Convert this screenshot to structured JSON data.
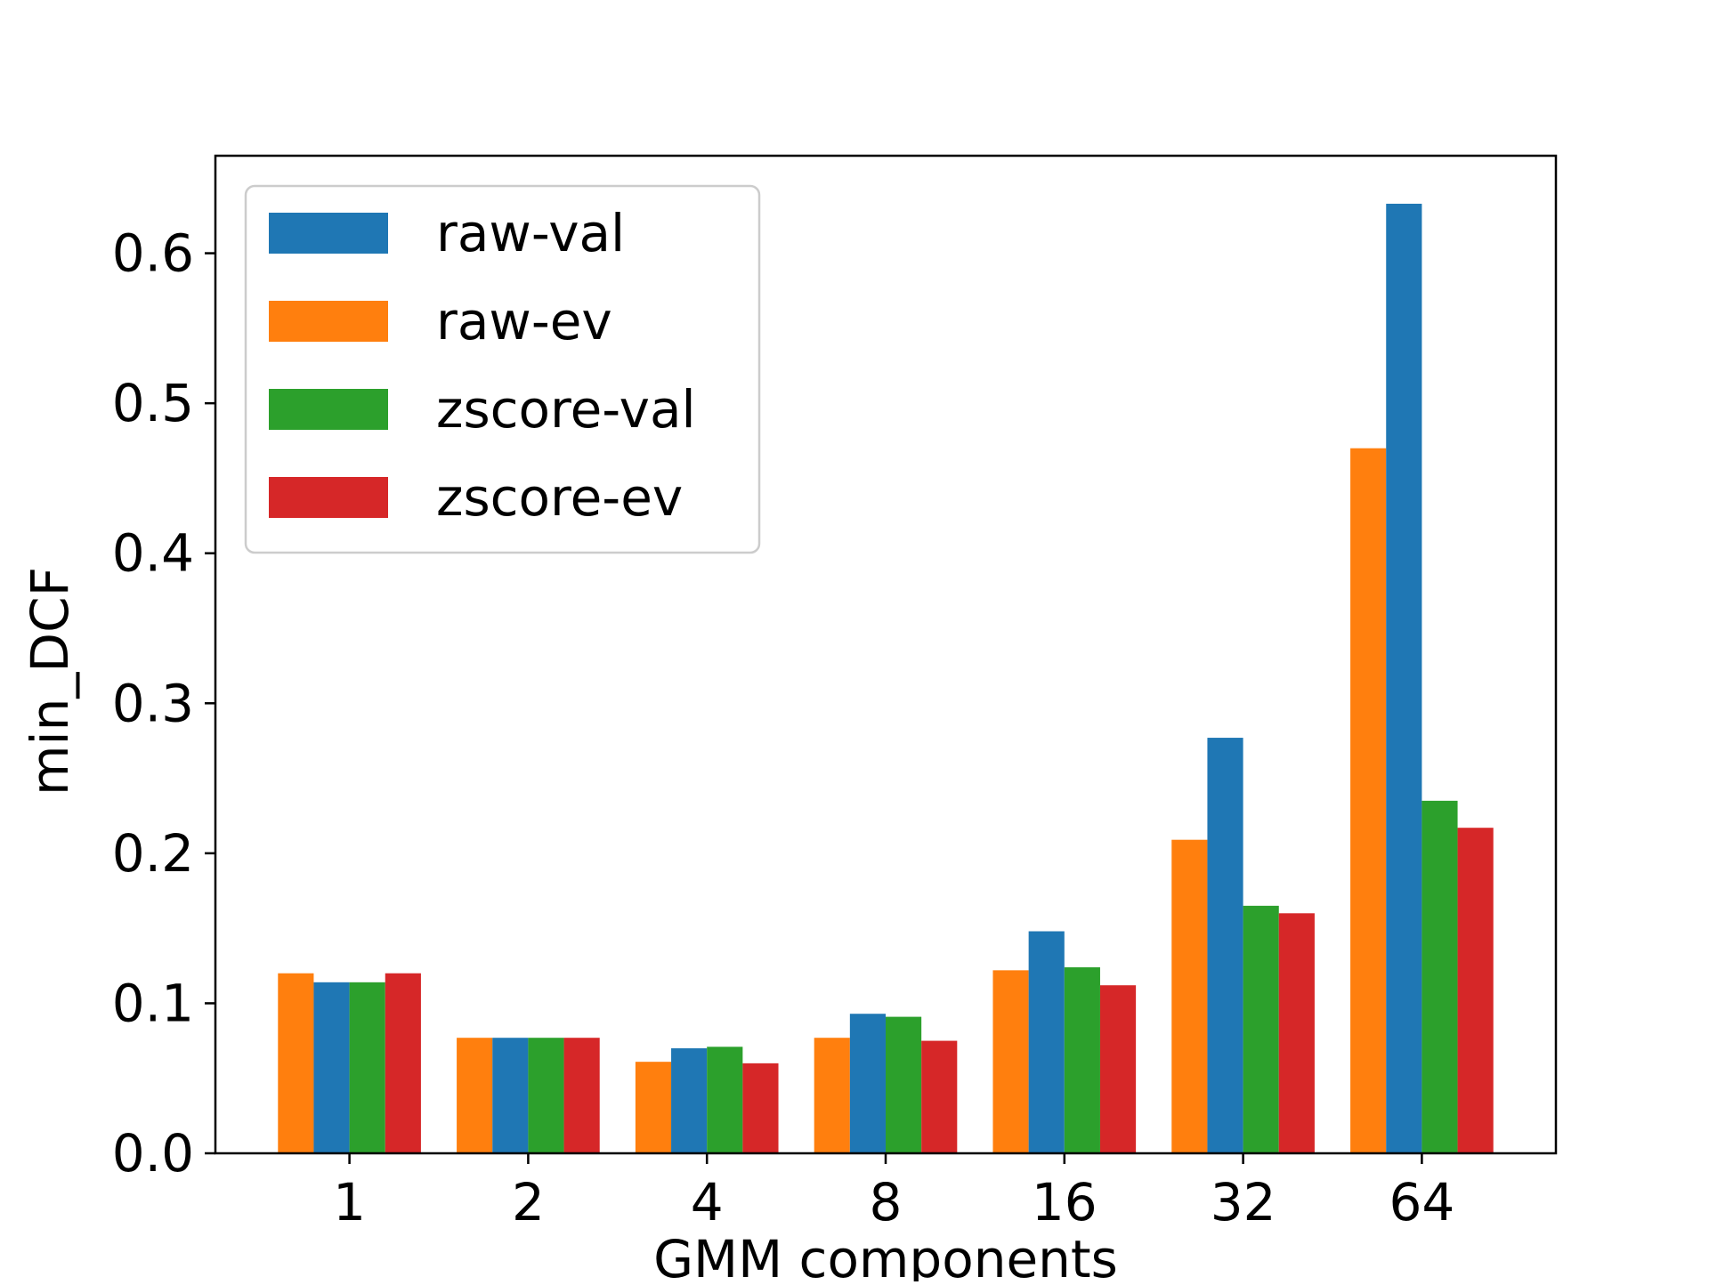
{
  "chart_data": {
    "type": "bar",
    "title": "",
    "xlabel": "GMM components",
    "ylabel": "min_DCF",
    "ylim": [
      0,
      0.665
    ],
    "yticks": [
      0.0,
      0.1,
      0.2,
      0.3,
      0.4,
      0.5,
      0.6
    ],
    "ytick_labels": [
      "0.0",
      "0.1",
      "0.2",
      "0.3",
      "0.4",
      "0.5",
      "0.6"
    ],
    "categories": [
      "1",
      "2",
      "4",
      "8",
      "16",
      "32",
      "64"
    ],
    "grid": false,
    "legend": {
      "position": "upper-left"
    },
    "bar_order": [
      "raw-ev",
      "raw-val",
      "zscore-val",
      "zscore-ev"
    ],
    "series": [
      {
        "name": "raw-val",
        "color": "#1f77b4",
        "values": [
          0.114,
          0.077,
          0.07,
          0.093,
          0.148,
          0.277,
          0.633
        ]
      },
      {
        "name": "raw-ev",
        "color": "#ff7f0e",
        "values": [
          0.12,
          0.077,
          0.061,
          0.077,
          0.122,
          0.209,
          0.47
        ]
      },
      {
        "name": "zscore-val",
        "color": "#2ca02c",
        "values": [
          0.114,
          0.077,
          0.071,
          0.091,
          0.124,
          0.165,
          0.235
        ]
      },
      {
        "name": "zscore-ev",
        "color": "#d62728",
        "values": [
          0.12,
          0.077,
          0.06,
          0.075,
          0.112,
          0.16,
          0.217
        ]
      }
    ]
  }
}
